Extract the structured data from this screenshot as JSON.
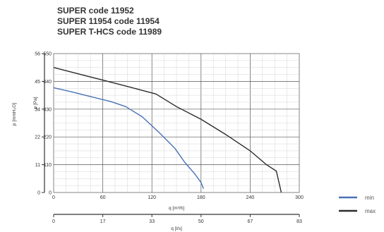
{
  "chart_data": {
    "type": "line",
    "title_lines": [
      "SUPER code 11952",
      "SUPER 11954 code 11954",
      "SUPER T-HCS code 11989"
    ],
    "xlabel": "q [m³/h]",
    "xlabel_secondary": "q [l/s]",
    "ylabel": "p [Pa]",
    "ylabel_secondary": "p [mmH₂O]",
    "xlim": [
      0,
      300
    ],
    "ylim": [
      0,
      550
    ],
    "x_ticks": [
      0,
      60,
      120,
      180,
      240,
      300
    ],
    "y_ticks": [
      0,
      110,
      220,
      330,
      440,
      550
    ],
    "x2_ticks": [
      "0",
      "17",
      "33",
      "50",
      "67",
      "83"
    ],
    "y2_ticks": [
      "0",
      "11",
      "22",
      "34",
      "45",
      "56"
    ],
    "grid": true,
    "legend_position": "bottom-right",
    "series": [
      {
        "name": "min",
        "color": "#4a72b5",
        "x": [
          0,
          20,
          45,
          70,
          88,
          108,
          128,
          148,
          160,
          172,
          180,
          183
        ],
        "y": [
          415,
          400,
          380,
          360,
          340,
          300,
          240,
          175,
          120,
          75,
          40,
          15
        ]
      },
      {
        "name": "max",
        "color": "#2b2b2b",
        "x": [
          0,
          30,
          60,
          90,
          125,
          150,
          180,
          210,
          240,
          260,
          272,
          278
        ],
        "y": [
          495,
          470,
          445,
          420,
          390,
          340,
          290,
          230,
          165,
          110,
          85,
          0
        ]
      }
    ]
  }
}
